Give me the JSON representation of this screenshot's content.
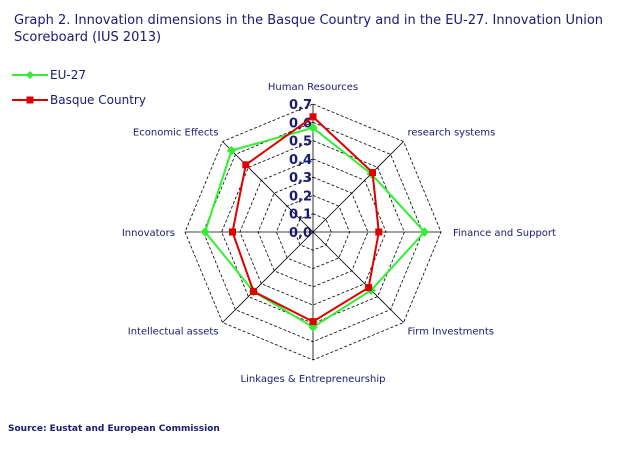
{
  "title": "Graph 2. Innovation dimensions in the Basque Country and in the EU-27. Innovation Union Scoreboard (IUS 2013)",
  "source": "Source: Eustat and European Commission",
  "chart_data": {
    "type": "radar",
    "title": "Graph 2. Innovation dimensions in the Basque Country and in the EU-27. Innovation Union Scoreboard (IUS 2013)",
    "axes": [
      "Human Resources",
      "research systems",
      "Finance and Support",
      "Firm Investments",
      "Linkages & Entrepreneurship",
      "Intellectual assets",
      "Innovators",
      "Economic Effects"
    ],
    "range": [
      0,
      0.7
    ],
    "ticks": [
      "0,0",
      "0,1",
      "0,2",
      "0,3",
      "0,4",
      "0,5",
      "0,6",
      "0,7"
    ],
    "grid": true,
    "legend_position": "top-left",
    "series": [
      {
        "name": "EU-27",
        "values": [
          0.57,
          0.45,
          0.61,
          0.45,
          0.52,
          0.46,
          0.59,
          0.63
        ],
        "color": "#33ee33",
        "marker": "diamond"
      },
      {
        "name": "Basque Country",
        "values": [
          0.63,
          0.46,
          0.36,
          0.43,
          0.49,
          0.46,
          0.44,
          0.52
        ],
        "color": "#dd0000",
        "marker": "square"
      }
    ]
  }
}
